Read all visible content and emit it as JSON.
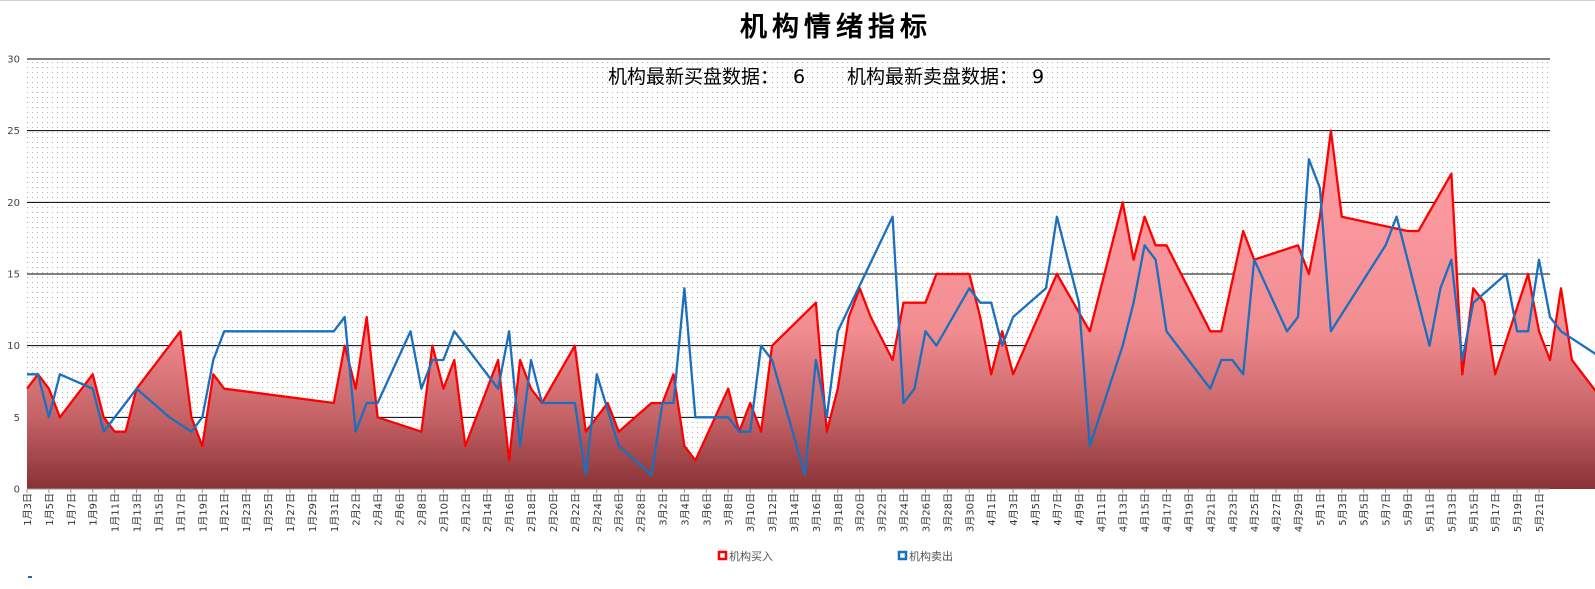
{
  "chart_data": {
    "type": "area",
    "title": "机构情绪指标",
    "subtitle_buy_label": "机构最新买盘数据：",
    "subtitle_buy_value": "6",
    "subtitle_sell_label": "机构最新卖盘数据：",
    "subtitle_sell_value": "9",
    "ylim": [
      0,
      30
    ],
    "yticks": [
      0,
      5,
      10,
      15,
      20,
      25,
      30
    ],
    "grid": true,
    "legend_position": "bottom",
    "x_tick_labels": [
      "1月3日",
      "1月5日",
      "1月7日",
      "1月9日",
      "1月11日",
      "1月13日",
      "1月15日",
      "1月17日",
      "1月19日",
      "1月21日",
      "1月23日",
      "1月25日",
      "1月27日",
      "1月29日",
      "1月31日",
      "2月2日",
      "2月4日",
      "2月6日",
      "2月8日",
      "2月10日",
      "2月12日",
      "2月14日",
      "2月16日",
      "2月18日",
      "2月20日",
      "2月22日",
      "2月24日",
      "2月26日",
      "2月28日",
      "3月2日",
      "3月4日",
      "3月6日",
      "3月8日",
      "3月10日",
      "3月12日",
      "3月14日",
      "3月16日",
      "3月18日",
      "3月20日",
      "3月22日",
      "3月24日",
      "3月26日",
      "3月28日",
      "3月30日",
      "4月1日",
      "4月3日",
      "4月5日",
      "4月7日",
      "4月9日",
      "4月11日",
      "4月13日",
      "4月15日",
      "4月17日",
      "4月19日",
      "4月21日",
      "4月23日",
      "4月25日",
      "4月27日",
      "4月29日",
      "5月1日",
      "5月3日",
      "5月5日",
      "5月7日",
      "5月9日",
      "5月11日",
      "5月13日",
      "5月15日",
      "5月17日",
      "5月19日",
      "5月21日"
    ],
    "series": [
      {
        "name": "机构买入",
        "color": "#ff0000",
        "points": [
          [
            0,
            7
          ],
          [
            0.5,
            8
          ],
          [
            1,
            7
          ],
          [
            1.5,
            5
          ],
          [
            3,
            8
          ],
          [
            3.5,
            5
          ],
          [
            4,
            4
          ],
          [
            4.5,
            4
          ],
          [
            5,
            7
          ],
          [
            7,
            11
          ],
          [
            7.5,
            5
          ],
          [
            8,
            3
          ],
          [
            8.5,
            8
          ],
          [
            9,
            7
          ],
          [
            14,
            6
          ],
          [
            14.5,
            10
          ],
          [
            15,
            7
          ],
          [
            15.5,
            12
          ],
          [
            16,
            5
          ],
          [
            18,
            4
          ],
          [
            18.5,
            10
          ],
          [
            19,
            7
          ],
          [
            19.5,
            9
          ],
          [
            20,
            3
          ],
          [
            21.5,
            9
          ],
          [
            22,
            2
          ],
          [
            22.5,
            9
          ],
          [
            23,
            7
          ],
          [
            23.5,
            6
          ],
          [
            25,
            10
          ],
          [
            25.5,
            4
          ],
          [
            26.5,
            6
          ],
          [
            27,
            4
          ],
          [
            28.5,
            6
          ],
          [
            29,
            6
          ],
          [
            29.5,
            8
          ],
          [
            30,
            3
          ],
          [
            30.5,
            2
          ],
          [
            32,
            7
          ],
          [
            32.5,
            4
          ],
          [
            33,
            6
          ],
          [
            33.5,
            4
          ],
          [
            34,
            10
          ],
          [
            36,
            13
          ],
          [
            36.5,
            4
          ],
          [
            37,
            7
          ],
          [
            37.5,
            12
          ],
          [
            38,
            14
          ],
          [
            38.5,
            12
          ],
          [
            39.5,
            9
          ],
          [
            40,
            13
          ],
          [
            41,
            13
          ],
          [
            41.5,
            15
          ],
          [
            43,
            15
          ],
          [
            43.5,
            12
          ],
          [
            44,
            8
          ],
          [
            44.5,
            11
          ],
          [
            45,
            8
          ],
          [
            47,
            15
          ],
          [
            48.5,
            11
          ],
          [
            50,
            20
          ],
          [
            50.5,
            16
          ],
          [
            51,
            19
          ],
          [
            51.5,
            17
          ],
          [
            52,
            17
          ],
          [
            54,
            11
          ],
          [
            54.5,
            11
          ],
          [
            55.5,
            18
          ],
          [
            56,
            16
          ],
          [
            58,
            17
          ],
          [
            58.5,
            15
          ],
          [
            59,
            19
          ],
          [
            59.5,
            25
          ],
          [
            60,
            19
          ],
          [
            63,
            18
          ],
          [
            63.5,
            18
          ],
          [
            65,
            22
          ],
          [
            65.5,
            8
          ],
          [
            66,
            14
          ],
          [
            66.5,
            13
          ],
          [
            67,
            8
          ],
          [
            68.5,
            15
          ],
          [
            69,
            11
          ],
          [
            69.5,
            9
          ],
          [
            70,
            14
          ],
          [
            70.5,
            9
          ],
          [
            72,
            6
          ]
        ]
      },
      {
        "name": "机构卖出",
        "color": "#1a6fbf",
        "points": [
          [
            0,
            8
          ],
          [
            0.5,
            8
          ],
          [
            1,
            5
          ],
          [
            1.5,
            8
          ],
          [
            3,
            7
          ],
          [
            3.5,
            4
          ],
          [
            5,
            7
          ],
          [
            6.5,
            5
          ],
          [
            7.5,
            4
          ],
          [
            8,
            5
          ],
          [
            8.5,
            9
          ],
          [
            9,
            11
          ],
          [
            14,
            11
          ],
          [
            14.5,
            12
          ],
          [
            15,
            4
          ],
          [
            15.5,
            6
          ],
          [
            16,
            6
          ],
          [
            17.5,
            11
          ],
          [
            18,
            7
          ],
          [
            18.5,
            9
          ],
          [
            19,
            9
          ],
          [
            19.5,
            11
          ],
          [
            21.5,
            7
          ],
          [
            22,
            11
          ],
          [
            22.5,
            3
          ],
          [
            23,
            9
          ],
          [
            23.5,
            6
          ],
          [
            25,
            6
          ],
          [
            25.5,
            1
          ],
          [
            26,
            8
          ],
          [
            27,
            3
          ],
          [
            28.5,
            1
          ],
          [
            29,
            6
          ],
          [
            29.5,
            6
          ],
          [
            30,
            14
          ],
          [
            30.5,
            5
          ],
          [
            32,
            5
          ],
          [
            32.5,
            4
          ],
          [
            33,
            4
          ],
          [
            33.5,
            10
          ],
          [
            34,
            9
          ],
          [
            35.5,
            1
          ],
          [
            36,
            9
          ],
          [
            36.5,
            5
          ],
          [
            37,
            11
          ],
          [
            39.5,
            19
          ],
          [
            40,
            6
          ],
          [
            40.5,
            7
          ],
          [
            41,
            11
          ],
          [
            41.5,
            10
          ],
          [
            43,
            14
          ],
          [
            43.5,
            13
          ],
          [
            44,
            13
          ],
          [
            44.5,
            10
          ],
          [
            45,
            12
          ],
          [
            46.5,
            14
          ],
          [
            47,
            19
          ],
          [
            48,
            13
          ],
          [
            48.5,
            3
          ],
          [
            50,
            10
          ],
          [
            50.5,
            13
          ],
          [
            51,
            17
          ],
          [
            51.5,
            16
          ],
          [
            52,
            11
          ],
          [
            54,
            7
          ],
          [
            54.5,
            9
          ],
          [
            55,
            9
          ],
          [
            55.5,
            8
          ],
          [
            56,
            16
          ],
          [
            57.5,
            11
          ],
          [
            58,
            12
          ],
          [
            58.5,
            23
          ],
          [
            59,
            21
          ],
          [
            59.5,
            11
          ],
          [
            62,
            17
          ],
          [
            62.5,
            19
          ],
          [
            64,
            10
          ],
          [
            64.5,
            14
          ],
          [
            65,
            16
          ],
          [
            65.5,
            9
          ],
          [
            66,
            13
          ],
          [
            67.5,
            15
          ],
          [
            68,
            11
          ],
          [
            68.5,
            11
          ],
          [
            69,
            16
          ],
          [
            69.5,
            12
          ],
          [
            70,
            11
          ],
          [
            72,
            9
          ],
          [
            72,
            0
          ]
        ]
      }
    ]
  }
}
